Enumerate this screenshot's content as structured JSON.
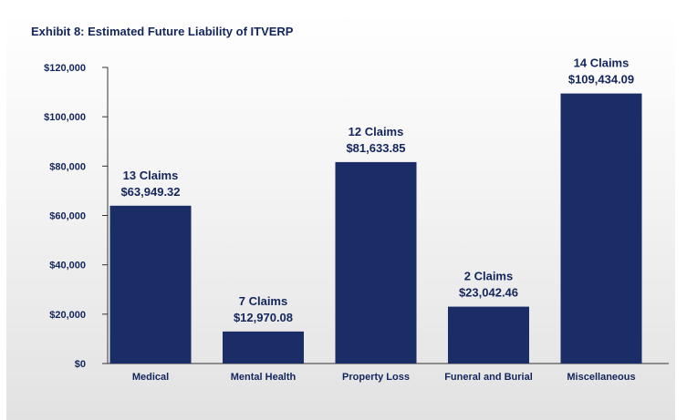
{
  "chart_data": {
    "type": "bar",
    "title": "Exhibit 8: Estimated Future Liability of ITVERP",
    "xlabel": "",
    "ylabel": "",
    "ylim": [
      0,
      120000
    ],
    "yticks": [
      0,
      20000,
      40000,
      60000,
      80000,
      100000,
      120000
    ],
    "ytick_labels": [
      "$0",
      "$20,000",
      "$40,000",
      "$60,000",
      "$80,000",
      "$100,000",
      "$120,000"
    ],
    "categories": [
      "Medical",
      "Mental Health",
      "Property Loss",
      "Funeral and Burial",
      "Miscellaneous"
    ],
    "values": [
      63949.32,
      12970.08,
      81633.85,
      23042.46,
      109434.09
    ],
    "claims_labels": [
      "13 Claims",
      "7 Claims",
      "12 Claims",
      "2 Claims",
      "14 Claims"
    ],
    "value_labels": [
      "$63,949.32",
      "$12,970.08",
      "$81,633.85",
      "$23,042.46",
      "$109,434.09"
    ],
    "bar_color": "#1b2d66",
    "grid": false
  }
}
